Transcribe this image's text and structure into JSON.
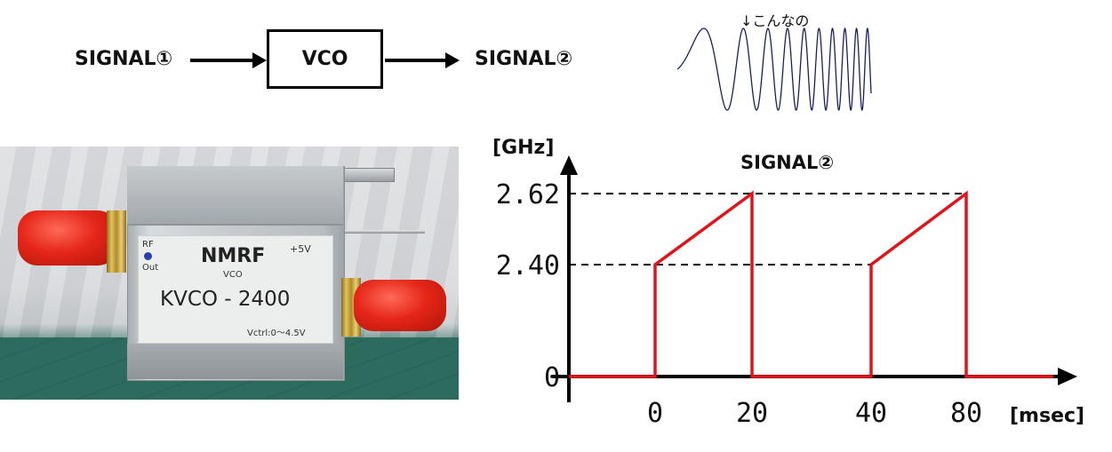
{
  "block_diagram": {
    "input_label": "SIGNAL①",
    "block_label": "VCO",
    "output_label": "SIGNAL②"
  },
  "waveform_note": "↓こんなの",
  "photo": {
    "brand": "NMRF",
    "sub": "VCO",
    "model": "KVCO - 2400",
    "rf_label": "RF",
    "out_label": "Out",
    "power_label": "+5V",
    "vctrl_label": "Vctrl:0～4.5V"
  },
  "chart_data": {
    "type": "line",
    "title": "SIGNAL②",
    "ylabel": "[GHz]",
    "xlabel": "[msec]",
    "x_ticks": [
      "0",
      "20",
      "40",
      "80"
    ],
    "y_ticks": [
      "0",
      "2.40",
      "2.62"
    ],
    "line_color": "#e0141a",
    "series": [
      {
        "points": [
          {
            "x": "0",
            "y": 0
          },
          {
            "x": "0",
            "y": 2.4
          },
          {
            "x": "20",
            "y": 2.62
          },
          {
            "x": "20",
            "y": 0
          },
          {
            "x": "40",
            "y": 0
          },
          {
            "x": "40",
            "y": 2.4
          },
          {
            "x": "80",
            "y": 2.62
          },
          {
            "x": "80",
            "y": 0
          }
        ]
      }
    ]
  }
}
